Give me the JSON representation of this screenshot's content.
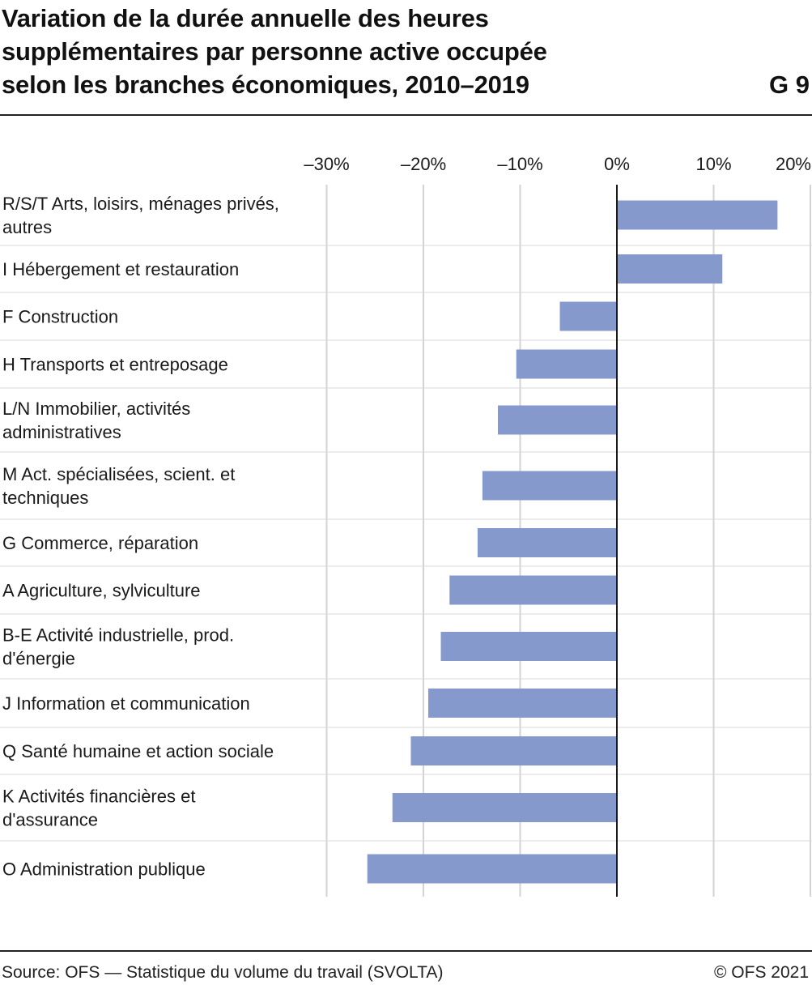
{
  "header": {
    "title_lines": [
      "Variation de la durée annuelle des heures",
      "supplémentaires par personne active occupée",
      "selon les branches économiques, 2010–2019"
    ],
    "chart_number": "G 9"
  },
  "footer": {
    "source": "Source: OFS — Statistique du volume du travail (SVOLTA)",
    "copyright": "© OFS 2021"
  },
  "colors": {
    "bar": "#8599cc",
    "grid": "#d3d3d3",
    "zero_line": "#1a1a1a",
    "separator": "#d9d9d9",
    "text": "#1a1a1a"
  },
  "chart_data": {
    "type": "bar",
    "orientation": "horizontal",
    "title": "Variation de la durée annuelle des heures supplémentaires par personne active occupée selon les branches économiques, 2010–2019",
    "xlabel": "",
    "ylabel": "",
    "xlim": [
      -30,
      20
    ],
    "grid": true,
    "tick_values": [
      -30,
      -20,
      -10,
      0,
      10,
      20
    ],
    "tick_labels": [
      "–30%",
      "–20%",
      "–10%",
      "0%",
      "10%",
      "20%"
    ],
    "categories": [
      [
        "R/S/T Arts, loisirs, ménages privés,",
        "autres"
      ],
      [
        "I Hébergement et restauration"
      ],
      [
        "F Construction"
      ],
      [
        "H Transports et entreposage"
      ],
      [
        "L/N Immobilier, activités",
        "administratives"
      ],
      [
        "M Act. spécialisées, scient. et",
        "techniques"
      ],
      [
        "G Commerce, réparation"
      ],
      [
        "A Agriculture, sylviculture"
      ],
      [
        "B-E Activité industrielle, prod.",
        "d'énergie"
      ],
      [
        "J Information et communication"
      ],
      [
        "Q Santé humaine et action sociale"
      ],
      [
        "K Activités financières et",
        "d'assurance"
      ],
      [
        "O Administration publique"
      ]
    ],
    "values": [
      16.6,
      10.9,
      -5.9,
      -10.4,
      -12.3,
      -13.9,
      -14.4,
      -17.3,
      -18.2,
      -19.5,
      -21.3,
      -23.2,
      -25.8
    ]
  }
}
